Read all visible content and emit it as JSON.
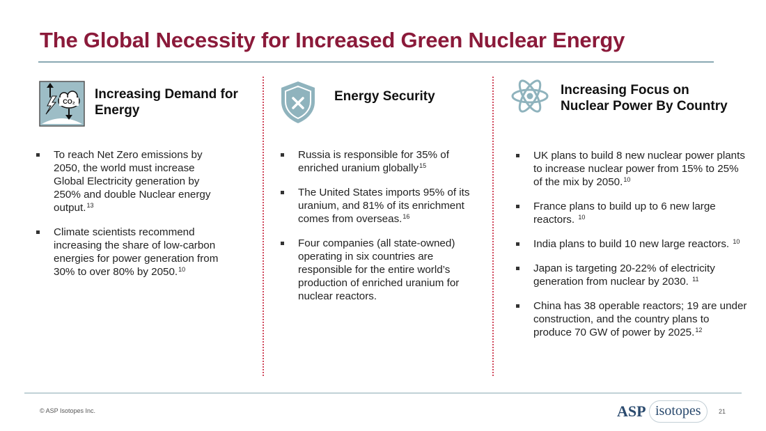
{
  "slide": {
    "title": "The Global Necessity for Increased Green Nuclear Energy"
  },
  "columns": [
    {
      "heading_line1": "Increasing Demand for",
      "heading_line2": "Energy",
      "icon": "energy-demand-icon",
      "icon_text": "CO₂",
      "bullets": [
        {
          "text": "To reach Net Zero emissions by 2050, the world must increase Global Electricity generation by 250% and double Nuclear energy output.",
          "ref": "13"
        },
        {
          "text": "Climate scientists recommend increasing the share of low-carbon energies for power generation from 30% to over 80% by 2050.",
          "ref": "10"
        }
      ]
    },
    {
      "heading_line1": "Energy Security",
      "icon": "shield-x-icon",
      "bullets": [
        {
          "text": "Russia is responsible for 35% of enriched uranium globally",
          "ref": "15"
        },
        {
          "text": "The United States imports 95% of its uranium, and 81% of its enrichment comes from overseas.",
          "ref": "16"
        },
        {
          "text": "Four companies (all state-owned) operating in six countries are responsible for the entire world’s production of enriched uranium for nuclear reactors.",
          "ref": ""
        }
      ]
    },
    {
      "heading_line1": "Increasing Focus on",
      "heading_line2": "Nuclear Power By Country",
      "icon": "atom-icon",
      "bullets": [
        {
          "text": "UK plans to build 8 new nuclear power plants to increase nuclear power from 15% to 25% of the mix by 2050.",
          "ref": "10"
        },
        {
          "text": "France plans to build up to 6 new large reactors. ",
          "ref": "10"
        },
        {
          "text": "India plans to build 10 new large reactors. ",
          "ref": "10"
        },
        {
          "text": "Japan is targeting 20-22% of electricity generation from nuclear by 2030. ",
          "ref": "11"
        },
        {
          "text": "China has 38 operable reactors; 19 are under construction, and the country plans to produce 70 GW of power by 2025.",
          "ref": "12"
        }
      ]
    }
  ],
  "footer": {
    "copyright": "© ASP Isotopes Inc.",
    "logo_asp": "ASP",
    "logo_isotopes": "isotopes",
    "page_number": "21"
  },
  "colors": {
    "title": "#8b1a3a",
    "rule": "#8aa9b3",
    "divider": "#d0485c",
    "icon": "#8fb3bd",
    "logo": "#2a4a6e"
  }
}
